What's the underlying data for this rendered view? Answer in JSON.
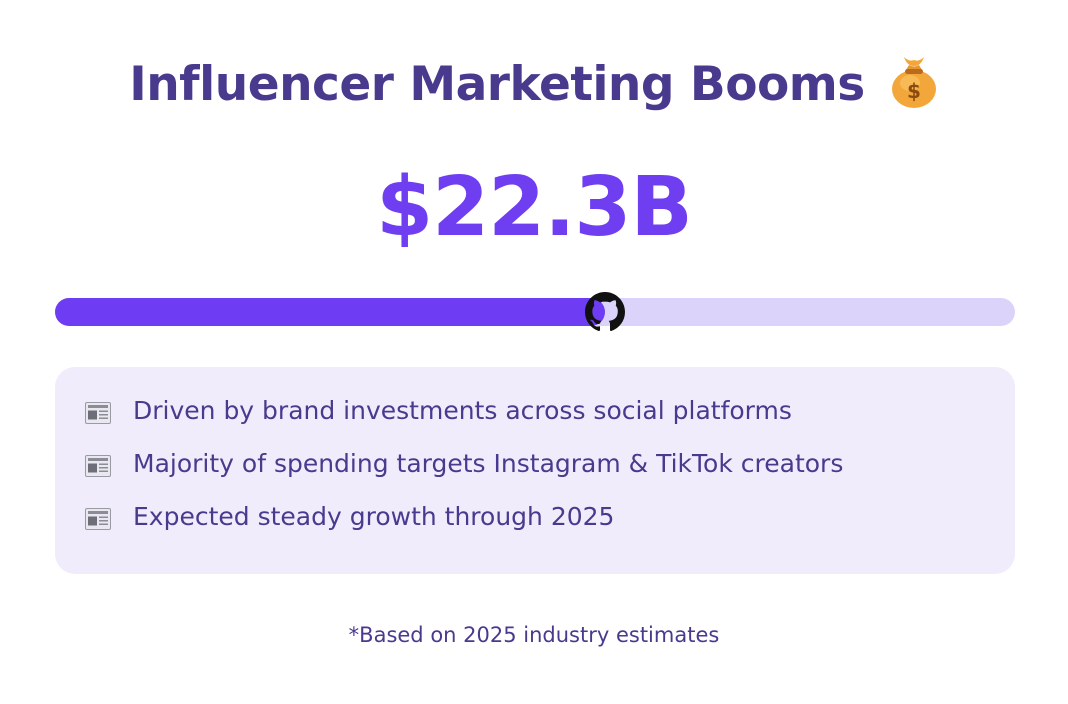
{
  "header": {
    "title": "Influencer Marketing Booms",
    "title_icon": "money-bag-icon"
  },
  "stat": {
    "value": "$22.3B",
    "progress_fraction": 0.573,
    "knob_icon": "github-icon"
  },
  "info": {
    "items": [
      {
        "icon": "newspaper-icon",
        "text": "Driven by brand investments across social platforms"
      },
      {
        "icon": "newspaper-icon",
        "text": "Majority of spending targets Instagram & TikTok creators"
      },
      {
        "icon": "newspaper-icon",
        "text": "Expected steady growth through 2025"
      }
    ]
  },
  "footnote": "*Based on 2025 industry estimates",
  "colors": {
    "title": "#4a3a8e",
    "accent": "#6e3cf2",
    "track": "#dcd3fb",
    "card": "#f1ecfc"
  }
}
